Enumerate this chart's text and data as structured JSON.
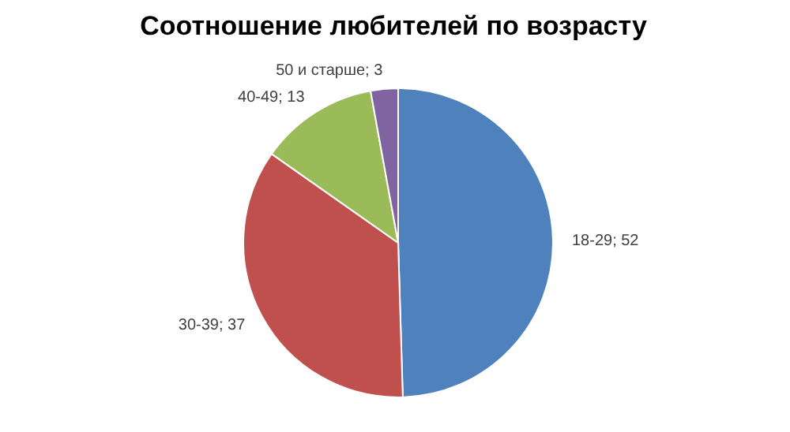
{
  "chart_data": {
    "type": "pie",
    "title": "Соотношение любителей по возрасту",
    "categories": [
      "18-29",
      "30-39",
      "40-49",
      "50 и старше"
    ],
    "values": [
      52,
      37,
      13,
      3
    ],
    "colors": [
      "#4f81bd",
      "#c0504d",
      "#9bbb59",
      "#8064a2"
    ],
    "value_labels": [
      "; 52",
      "; 37",
      "; 13",
      "; 3"
    ],
    "legend": false
  }
}
